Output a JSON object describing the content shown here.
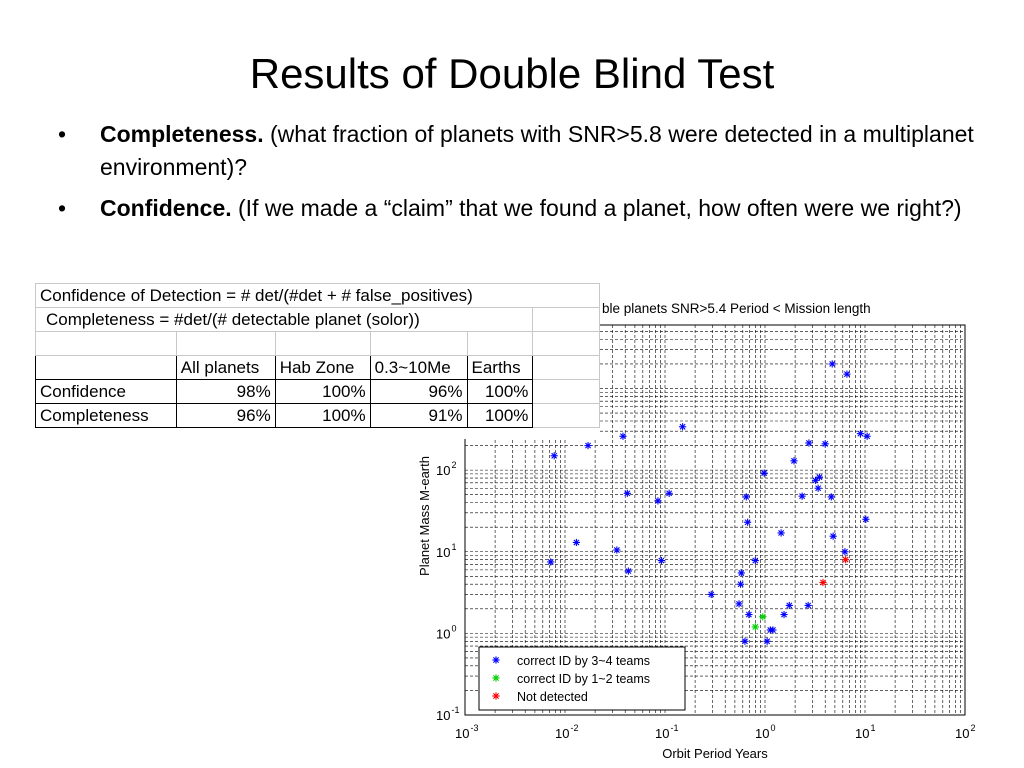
{
  "slide": {
    "title": "Results of Double Blind Test",
    "bullets": [
      {
        "bold": "Completeness.",
        "text": " (what fraction of planets with SNR>5.8 were detected in a multiplanet environment)?"
      },
      {
        "bold": "Confidence.",
        "text": " (If we made a “claim” that we found a planet, how often were we right?)"
      }
    ]
  },
  "table": {
    "note1": "Confidence of Detection = # det/(#det + # false_positives)",
    "note2": "Completeness  =  #det/(# detectable planet (solor))",
    "headers": [
      "",
      "All planets",
      "Hab Zone",
      "0.3~10Me",
      "Earths"
    ],
    "rows": [
      [
        "Confidence",
        "98%",
        "100%",
        "96%",
        "100%"
      ],
      [
        "Completeness",
        "96%",
        "100%",
        "91%",
        "100%"
      ]
    ]
  },
  "chart_data": {
    "type": "scatter",
    "title": "ble planets SNR>5.4 Period < Mission length",
    "xlabel": "Orbit Period Years",
    "ylabel": "Planet Mass M-earth",
    "x_scale": "log",
    "y_scale": "log",
    "xlim": [
      0.001,
      100
    ],
    "ylim": [
      0.1,
      6000
    ],
    "x_ticks": [
      {
        "base": "10",
        "exp": "-3"
      },
      {
        "base": "10",
        "exp": "-2"
      },
      {
        "base": "10",
        "exp": "-1"
      },
      {
        "base": "10",
        "exp": "0"
      },
      {
        "base": "10",
        "exp": "1"
      },
      {
        "base": "10",
        "exp": "2"
      }
    ],
    "y_ticks": [
      {
        "base": "10",
        "exp": "-1"
      },
      {
        "base": "10",
        "exp": "0"
      },
      {
        "base": "10",
        "exp": "1"
      },
      {
        "base": "10",
        "exp": "2"
      }
    ],
    "grid": true,
    "legend_position": "bottom-left",
    "series": [
      {
        "name": "correct ID by 3~4 teams",
        "color": "#0000ff",
        "points": [
          [
            0.0072,
            7.5
          ],
          [
            0.0078,
            150
          ],
          [
            0.013,
            13
          ],
          [
            0.017,
            200
          ],
          [
            0.033,
            10.5
          ],
          [
            0.038,
            260
          ],
          [
            0.042,
            52
          ],
          [
            0.043,
            5.8
          ],
          [
            0.085,
            42
          ],
          [
            0.092,
            7.8
          ],
          [
            0.11,
            52
          ],
          [
            0.15,
            340
          ],
          [
            0.29,
            3.0
          ],
          [
            0.55,
            2.3
          ],
          [
            0.57,
            4.0
          ],
          [
            0.58,
            5.5
          ],
          [
            0.63,
            0.8
          ],
          [
            0.65,
            47
          ],
          [
            0.67,
            23
          ],
          [
            0.69,
            1.7
          ],
          [
            0.8,
            7.8
          ],
          [
            0.98,
            92
          ],
          [
            1.05,
            0.8
          ],
          [
            1.13,
            1.1
          ],
          [
            1.2,
            1.1
          ],
          [
            1.45,
            17
          ],
          [
            1.55,
            1.7
          ],
          [
            1.75,
            2.2
          ],
          [
            1.95,
            130
          ],
          [
            2.35,
            48
          ],
          [
            2.7,
            2.2
          ],
          [
            2.75,
            215
          ],
          [
            3.2,
            75
          ],
          [
            3.4,
            60
          ],
          [
            3.5,
            82
          ],
          [
            4.0,
            210
          ],
          [
            4.6,
            47
          ],
          [
            4.7,
            2000
          ],
          [
            4.8,
            15.5
          ],
          [
            6.3,
            10
          ],
          [
            6.6,
            1500
          ],
          [
            9.0,
            280
          ],
          [
            10.2,
            25
          ],
          [
            10.5,
            260
          ]
        ]
      },
      {
        "name": "correct ID by 1~2 teams",
        "color": "#00d000",
        "points": [
          [
            0.8,
            1.2
          ],
          [
            0.95,
            1.6
          ]
        ]
      },
      {
        "name": "Not detected",
        "color": "#ff0000",
        "points": [
          [
            3.8,
            4.2
          ],
          [
            6.4,
            8
          ]
        ]
      }
    ]
  }
}
